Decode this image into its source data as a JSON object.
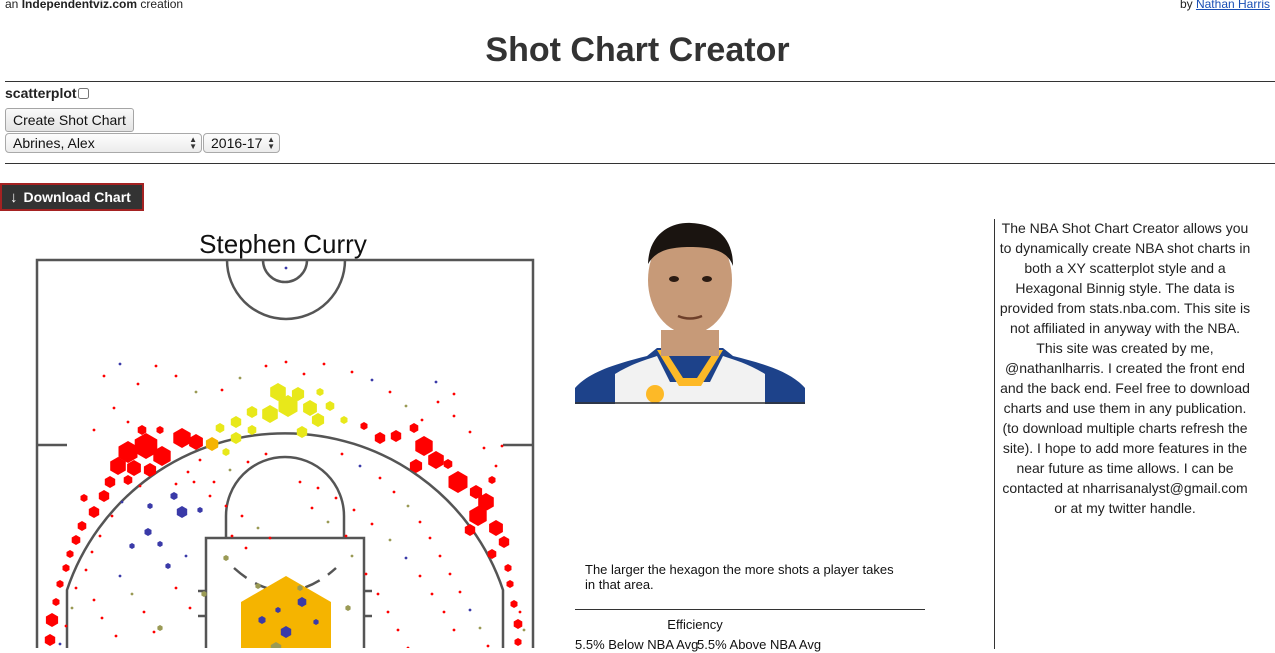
{
  "header": {
    "prefix": "an",
    "site": "Independentviz.com",
    "suffix": "creation",
    "by": "by",
    "author": "Nathan Harris",
    "title": "Shot Chart Creator"
  },
  "controls": {
    "scatter_label": "scatterplot",
    "scatter_checked": false,
    "create_button": "Create Shot Chart",
    "player_select": "Abrines, Alex",
    "season_select": "2016-17",
    "download_button": "Download Chart"
  },
  "chart": {
    "player_name": "Stephen Curry",
    "legend_note": "The larger the hexagon the more shots a player takes in that area.",
    "efficiency_title": "Efficiency",
    "below_label": "5.5% Below NBA Avg",
    "above_label": "5.5% Above NBA Avg",
    "colors": {
      "hot": "#ff0000",
      "warm": "#e8e81a",
      "orange": "#f5b400",
      "cold": "#3a3aa8",
      "neutral": "#9a9a55"
    }
  },
  "about": {
    "text": "The NBA Shot Chart Creator allows you to dynamically create NBA shot charts in both a XY scatterplot style and a Hexagonal Binnig style. The data is provided from stats.nba.com. This site is not affiliated in anyway with the NBA. This site was created by me, @nathanlharris. I created the front end and the back end. Feel free to download charts and use them in any publication. (to download multiple charts refresh the site). I hope to add more features in the near future as time allows. I can be contacted at nharrisanalyst@gmail.com or at my twitter handle."
  }
}
